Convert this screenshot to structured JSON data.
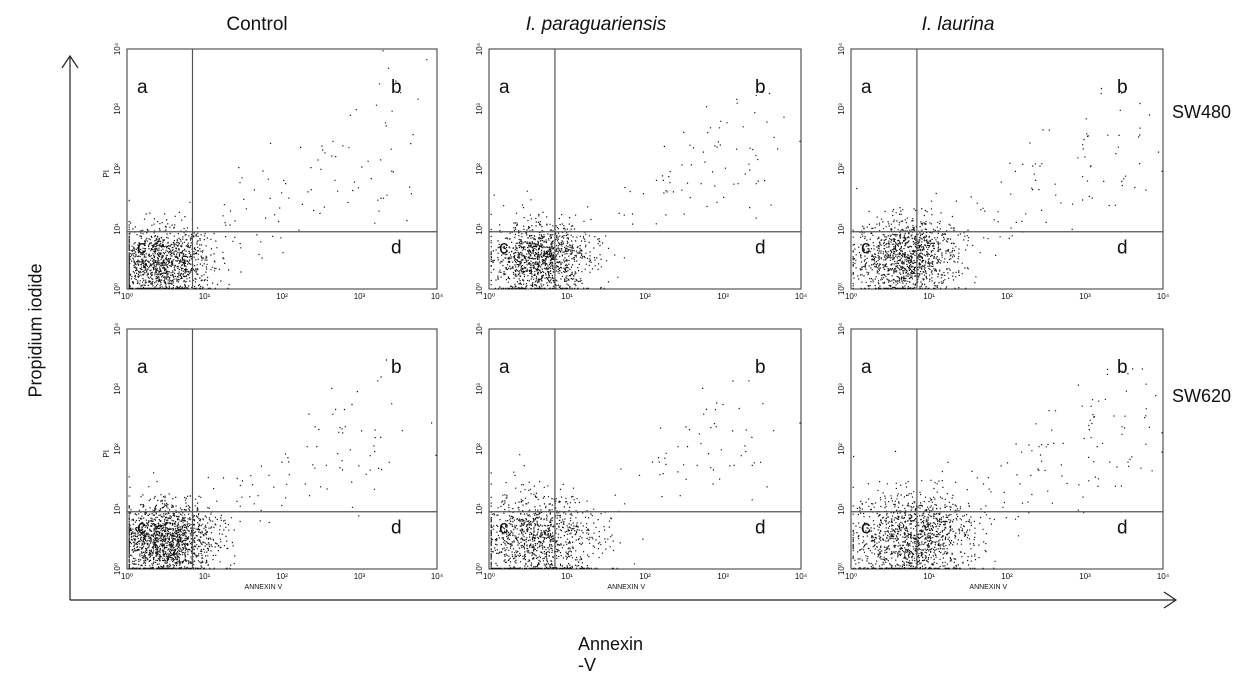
{
  "figure": {
    "columns": [
      "Control",
      "I. paraguariensis",
      "I. laurina"
    ],
    "rows": [
      "SW480",
      "SW620"
    ],
    "y_axis_label": "Propidium iodide",
    "x_axis_label": "Annexin -V",
    "quadrant_labels": [
      "a",
      "b",
      "c",
      "d"
    ],
    "panel_ylabel": "PI",
    "panel_xlabel": "ANNEXIN V",
    "tick_labels": [
      "10⁰",
      "10¹",
      "10²",
      "10³",
      "10⁴"
    ],
    "colors": {
      "dots": "#111111",
      "axes": "#333333",
      "gate_lines": "#555555"
    }
  },
  "chart_data": [
    {
      "type": "scatter",
      "panel": "Control / SW480",
      "x_scale": "log",
      "y_scale": "log",
      "xlim": [
        1,
        10000
      ],
      "ylim": [
        1,
        10000
      ],
      "gate": {
        "x": 7,
        "y": 9
      },
      "ylabel": "PI",
      "xlabel": "",
      "quadrants": {
        "a": "top-left",
        "b": "top-right",
        "c": "bottom-left",
        "d": "bottom-right"
      },
      "distribution": {
        "n_points": 1400,
        "center": [
          2.6,
          2.6
        ],
        "spread": 0.32,
        "tail_frac": 0.08
      }
    },
    {
      "type": "scatter",
      "panel": "I. paraguariensis / SW480",
      "x_scale": "log",
      "y_scale": "log",
      "xlim": [
        1,
        10000
      ],
      "ylim": [
        1,
        10000
      ],
      "gate": {
        "x": 7,
        "y": 9
      },
      "ylabel": "",
      "xlabel": "",
      "quadrants": {
        "a": "top-left",
        "b": "top-right",
        "c": "bottom-left",
        "d": "bottom-right"
      },
      "distribution": {
        "n_points": 1300,
        "center": [
          4.5,
          3.2
        ],
        "spread": 0.3,
        "tail_frac": 0.07
      }
    },
    {
      "type": "scatter",
      "panel": "I. laurina / SW480",
      "x_scale": "log",
      "y_scale": "log",
      "xlim": [
        1,
        10000
      ],
      "ylim": [
        1,
        10000
      ],
      "gate": {
        "x": 7,
        "y": 9
      },
      "ylabel": "",
      "xlabel": "",
      "quadrants": {
        "a": "top-left",
        "b": "top-right",
        "c": "bottom-left",
        "d": "bottom-right"
      },
      "distribution": {
        "n_points": 1300,
        "center": [
          5.0,
          3.5
        ],
        "spread": 0.32,
        "tail_frac": 0.09
      }
    },
    {
      "type": "scatter",
      "panel": "Control / SW620",
      "x_scale": "log",
      "y_scale": "log",
      "xlim": [
        1,
        10000
      ],
      "ylim": [
        1,
        10000
      ],
      "gate": {
        "x": 7,
        "y": 9
      },
      "ylabel": "PI",
      "xlabel": "ANNEXIN V",
      "quadrants": {
        "a": "top-left",
        "b": "top-right",
        "c": "bottom-left",
        "d": "bottom-right"
      },
      "distribution": {
        "n_points": 1700,
        "center": [
          3.2,
          3.0
        ],
        "spread": 0.3,
        "tail_frac": 0.06
      }
    },
    {
      "type": "scatter",
      "panel": "I. paraguariensis / SW620",
      "x_scale": "log",
      "y_scale": "log",
      "xlim": [
        1,
        10000
      ],
      "ylim": [
        1,
        10000
      ],
      "gate": {
        "x": 7,
        "y": 9
      },
      "ylabel": "",
      "xlabel": "ANNEXIN V",
      "quadrants": {
        "a": "top-left",
        "b": "top-right",
        "c": "bottom-left",
        "d": "bottom-right"
      },
      "distribution": {
        "n_points": 1200,
        "center": [
          4.0,
          3.0
        ],
        "spread": 0.38,
        "tail_frac": 0.07
      }
    },
    {
      "type": "scatter",
      "panel": "I. laurina / SW620",
      "x_scale": "log",
      "y_scale": "log",
      "xlim": [
        1,
        10000
      ],
      "ylim": [
        1,
        10000
      ],
      "gate": {
        "x": 7,
        "y": 9
      },
      "ylabel": "",
      "xlabel": "ANNEXIN V",
      "quadrants": {
        "a": "top-left",
        "b": "top-right",
        "c": "bottom-left",
        "d": "bottom-right"
      },
      "distribution": {
        "n_points": 1400,
        "center": [
          6.0,
          3.4
        ],
        "spread": 0.38,
        "tail_frac": 0.09
      }
    }
  ]
}
